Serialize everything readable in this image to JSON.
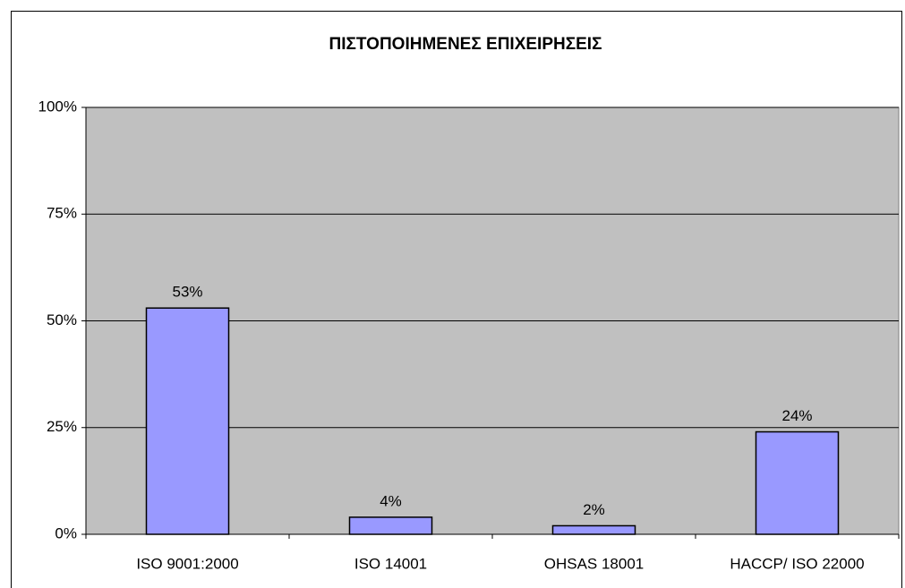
{
  "chart_data": {
    "type": "bar",
    "title": "ΠΙΣΤΟΠΟΙΗΜΕΝΕΣ ΕΠΙΧΕΙΡΗΣΕΙΣ",
    "categories": [
      "ISO 9001:2000",
      "ISO 14001",
      "OHSAS 18001",
      "HACCP/ ISO 22000"
    ],
    "values": [
      53,
      4,
      2,
      24
    ],
    "value_labels": [
      "53%",
      "4%",
      "2%",
      "24%"
    ],
    "color": "#9999ff",
    "ylim": [
      0,
      100
    ],
    "yticks": [
      {
        "value": 0,
        "label": "0%"
      },
      {
        "value": 25,
        "label": "25%"
      },
      {
        "value": 50,
        "label": "50%"
      },
      {
        "value": 75,
        "label": "75%"
      },
      {
        "value": 100,
        "label": "100%"
      }
    ],
    "grid": true
  }
}
